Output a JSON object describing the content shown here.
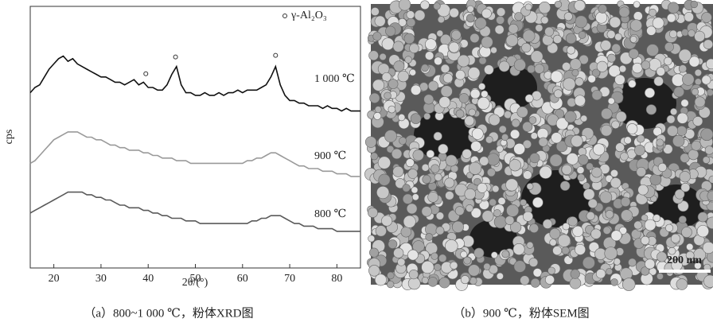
{
  "chart_data": {
    "type": "line",
    "x_label": "2θ/(°)",
    "y_label": "cps",
    "xlim": [
      15,
      85
    ],
    "xticks": [
      20,
      30,
      40,
      50,
      60,
      70,
      80
    ],
    "ylim": [
      0,
      100
    ],
    "x": [
      15,
      16,
      17,
      18,
      19,
      20,
      21,
      22,
      23,
      24,
      25,
      26,
      27,
      28,
      29,
      30,
      31,
      32,
      33,
      34,
      35,
      36,
      37,
      38,
      39,
      40,
      41,
      42,
      43,
      44,
      45,
      46,
      47,
      48,
      49,
      50,
      51,
      52,
      53,
      54,
      55,
      56,
      57,
      58,
      59,
      60,
      61,
      62,
      63,
      64,
      65,
      66,
      67,
      68,
      69,
      70,
      71,
      72,
      73,
      74,
      75,
      76,
      77,
      78,
      79,
      80,
      81,
      82,
      83,
      84,
      85
    ],
    "series": [
      {
        "name": "1 000 ℃",
        "color": "#111111",
        "values": [
          67,
          69,
          70,
          73,
          76,
          78,
          80,
          81,
          79,
          80,
          78,
          77,
          76,
          75,
          74,
          73,
          73,
          72,
          71,
          71,
          70,
          71,
          72,
          70,
          71,
          69,
          69,
          68,
          68,
          70,
          74,
          77,
          70,
          67,
          67,
          66,
          66,
          67,
          66,
          66,
          67,
          66,
          67,
          67,
          68,
          67,
          68,
          68,
          68,
          69,
          70,
          73,
          77,
          70,
          66,
          64,
          64,
          63,
          63,
          62,
          62,
          62,
          61,
          62,
          61,
          61,
          60,
          61,
          60,
          60,
          60
        ]
      },
      {
        "name": "900 ℃",
        "color": "#9a9a9a",
        "values": [
          40,
          41,
          43,
          45,
          47,
          49,
          50,
          51,
          52,
          52,
          52,
          51,
          50,
          50,
          49,
          49,
          48,
          47,
          47,
          46,
          46,
          45,
          45,
          45,
          44,
          44,
          43,
          43,
          42,
          42,
          42,
          41,
          41,
          41,
          40,
          40,
          40,
          40,
          40,
          40,
          40,
          40,
          40,
          40,
          40,
          40,
          41,
          41,
          42,
          42,
          43,
          44,
          44,
          43,
          42,
          41,
          40,
          39,
          39,
          38,
          38,
          38,
          37,
          37,
          37,
          36,
          36,
          36,
          35,
          35,
          35
        ]
      },
      {
        "name": "800 ℃",
        "color": "#5a5a5a",
        "values": [
          21,
          22,
          23,
          24,
          25,
          26,
          27,
          28,
          29,
          29,
          29,
          29,
          28,
          28,
          27,
          27,
          26,
          26,
          25,
          24,
          24,
          23,
          23,
          23,
          22,
          22,
          21,
          21,
          20,
          20,
          19,
          19,
          19,
          18,
          18,
          18,
          17,
          17,
          17,
          17,
          17,
          17,
          17,
          17,
          17,
          17,
          17,
          18,
          18,
          19,
          19,
          20,
          20,
          20,
          19,
          18,
          17,
          17,
          16,
          16,
          16,
          15,
          15,
          15,
          15,
          14,
          14,
          14,
          14,
          14,
          14
        ]
      }
    ],
    "peak_markers": {
      "name": "γ-Al₂O₃",
      "x": [
        39.5,
        45.8,
        67
      ]
    }
  },
  "sem_image": {
    "scale_bar": "200 nm"
  },
  "captions": [
    "（a）800~1 000 ℃，粉体XRD图",
    "（b）900 ℃，粉体SEM图"
  ]
}
